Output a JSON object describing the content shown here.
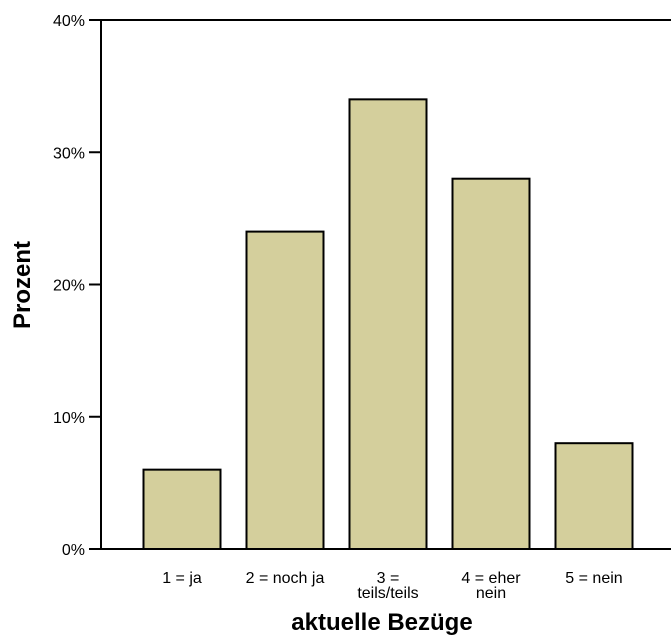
{
  "chart_data": {
    "type": "bar",
    "categories": [
      [
        "1 = ja"
      ],
      [
        "2 = noch ja"
      ],
      [
        "3 =",
        "teils/teils"
      ],
      [
        "4 = eher",
        "nein"
      ],
      [
        "5 = nein"
      ]
    ],
    "values": [
      6,
      24,
      34,
      28,
      8
    ],
    "title": "",
    "xlabel": "aktuelle Bezüge",
    "ylabel": "Prozent",
    "ylim": [
      0,
      40
    ],
    "yticks": [
      0,
      10,
      20,
      30,
      40
    ],
    "ytick_suffix": "%",
    "grid": false,
    "legend": "none",
    "bar_color": "#d4cf9c",
    "edge_color": "#000000"
  }
}
